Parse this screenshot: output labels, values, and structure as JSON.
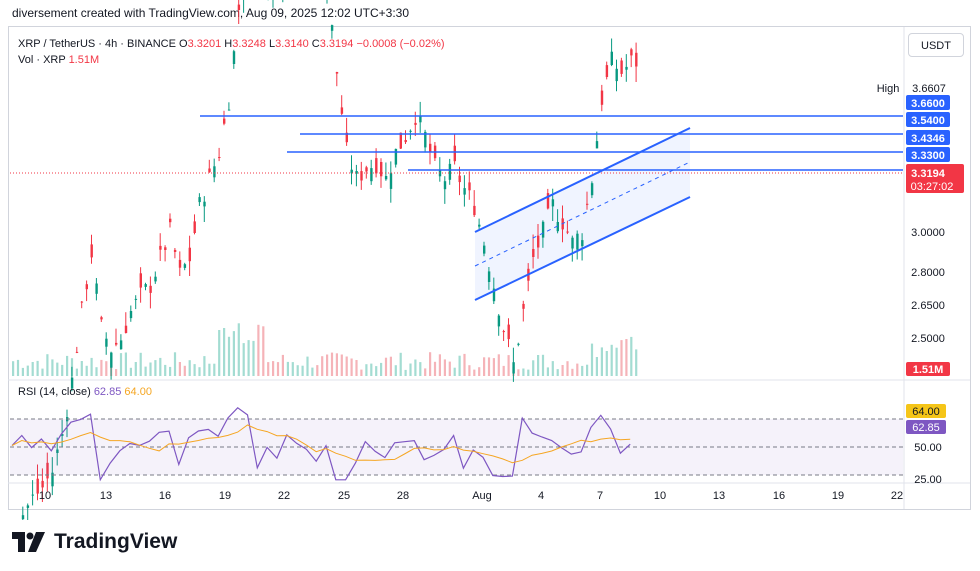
{
  "caption": "diversement created with TradingView.com, Aug 09, 2025 12:02 UTC+3:30",
  "unit_button": "USDT",
  "legend": {
    "symbol": "XRP / TetherUS · 4h · BINANCE",
    "o_label": "O",
    "o_value": "3.3201",
    "h_label": "H",
    "h_value": "3.3248",
    "l_label": "L",
    "l_value": "3.3140",
    "c_label": "C",
    "c_value": "3.3194",
    "change": "−0.0008 (−0.02%)",
    "vol_label": "Vol · XRP",
    "vol_value": "1.51M"
  },
  "rsi_legend": {
    "label": "RSI (14, close)",
    "value": "62.85",
    "ma_value": "64.00"
  },
  "brand": "TradingView",
  "colors": {
    "up": "#089981",
    "down": "#f23645",
    "channel": "#2962ff",
    "rsi": "#7e57c2",
    "rsi_ma": "#f5a623",
    "vol_up": "#a3dcd2",
    "vol_down": "#f5b3b8"
  },
  "chart_data": {
    "type": "candlestick",
    "symbol": "XRP / TetherUS",
    "interval": "4h",
    "x_ticks": [
      "10",
      "13",
      "16",
      "19",
      "22",
      "25",
      "28",
      "Aug",
      "4",
      "7",
      "10",
      "13",
      "16",
      "19",
      "22"
    ],
    "y_ticks": [
      "3.0000",
      "2.8000",
      "2.6500",
      "2.5000"
    ],
    "price_labels": [
      {
        "text": "High",
        "value": "3.6607"
      },
      {
        "text": "",
        "value": "3.6600"
      },
      {
        "text": "",
        "value": "3.5400"
      },
      {
        "text": "",
        "value": "3.4346"
      },
      {
        "text": "",
        "value": "3.3300"
      },
      {
        "text": "",
        "value": "3.3194"
      },
      {
        "text": "",
        "value": "03:27:02"
      }
    ],
    "horizontal_levels": [
      3.66,
      3.54,
      3.4346,
      3.33
    ],
    "channel": {
      "start": "Aug 1",
      "end": "Aug 11",
      "upper": [
        2.98,
        3.49
      ],
      "lower": [
        2.62,
        3.11
      ]
    },
    "price_close_approx": [
      2.45,
      2.47,
      2.5,
      2.52,
      2.55,
      2.62,
      2.72,
      2.85,
      2.96,
      2.82,
      2.78,
      2.8,
      2.85,
      2.88,
      2.9,
      2.95,
      3.0,
      2.92,
      2.95,
      3.05,
      3.1,
      3.15,
      3.25,
      3.42,
      3.55,
      3.5,
      3.48,
      3.46,
      3.5,
      3.52,
      3.55,
      3.48,
      3.46,
      3.3,
      3.15,
      3.1,
      3.12,
      3.13,
      3.1,
      3.15,
      3.18,
      3.22,
      3.18,
      3.12,
      3.1,
      3.12,
      3.08,
      3.05,
      2.98,
      2.9,
      2.82,
      2.75,
      2.85,
      2.95,
      3.0,
      3.05,
      3.02,
      2.98,
      3.0,
      3.1,
      3.25,
      3.32,
      3.3,
      3.32
    ],
    "volume_last": "1.51M",
    "rsi": {
      "period": 14,
      "value": 62.85,
      "ma": 64.0,
      "levels": [
        70,
        50,
        30
      ],
      "y_ticks": [
        "64.00",
        "62.85",
        "50.00",
        "25.00"
      ]
    }
  }
}
